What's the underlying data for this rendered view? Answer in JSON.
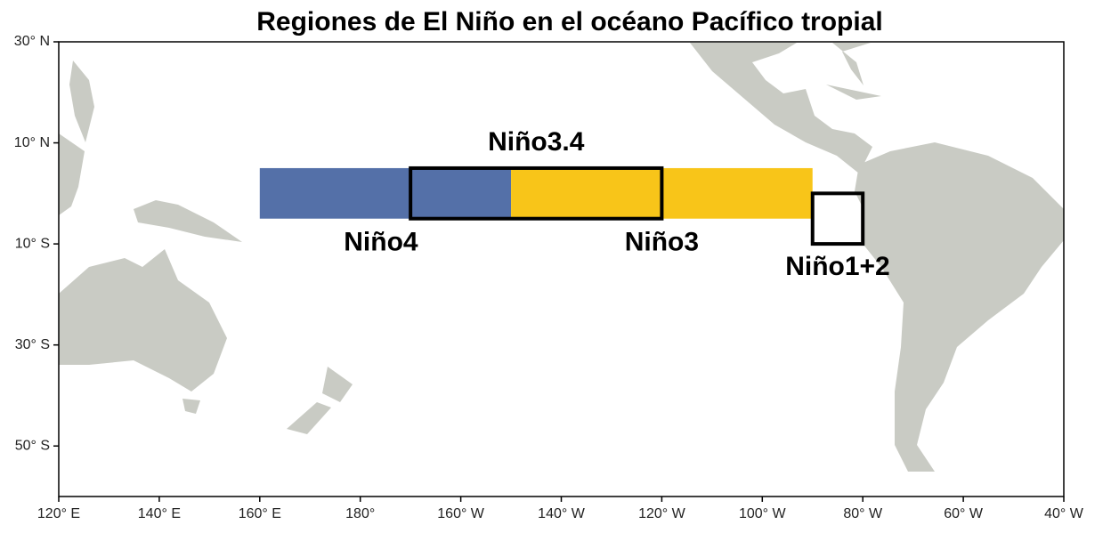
{
  "map": {
    "title": "Regiones de El Niño en el océano Pacífico tropial",
    "xlim": [
      120,
      320
    ],
    "ylim": [
      -60,
      30
    ],
    "xticks": [
      {
        "value": 120,
        "label": "120° E"
      },
      {
        "value": 140,
        "label": "140° E"
      },
      {
        "value": 160,
        "label": "160° E"
      },
      {
        "value": 180,
        "label": "180°"
      },
      {
        "value": 200,
        "label": "160° W"
      },
      {
        "value": 220,
        "label": "140° W"
      },
      {
        "value": 240,
        "label": "120° W"
      },
      {
        "value": 260,
        "label": "100° W"
      },
      {
        "value": 280,
        "label": "80° W"
      },
      {
        "value": 300,
        "label": "60° W"
      },
      {
        "value": 320,
        "label": "40° W"
      }
    ],
    "yticks": [
      {
        "value": 30,
        "label": "30° N"
      },
      {
        "value": 10,
        "label": "10° N"
      },
      {
        "value": -10,
        "label": "10° S"
      },
      {
        "value": -30,
        "label": "30° S"
      },
      {
        "value": -50,
        "label": "50° S"
      }
    ],
    "regions": [
      {
        "name": "Niño4",
        "lon": [
          160,
          210
        ],
        "lat": [
          -5,
          5
        ],
        "fill": "#5470a8"
      },
      {
        "name": "Niño3",
        "lon": [
          210,
          270
        ],
        "lat": [
          -5,
          5
        ],
        "fill": "#f8c519"
      },
      {
        "name": "Niño3.4",
        "lon": [
          190,
          240
        ],
        "lat": [
          -5,
          5
        ],
        "outline": "#000000"
      },
      {
        "name": "Niño1+2",
        "lon": [
          270,
          280
        ],
        "lat": [
          -10,
          0
        ],
        "outline": "#000000"
      }
    ]
  }
}
